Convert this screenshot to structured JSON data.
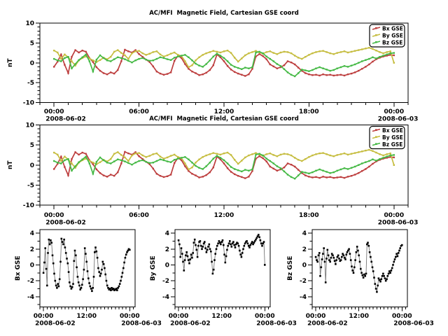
{
  "figure": {
    "background": "#ffffff",
    "frame_color": "#000000",
    "text_color": "#000000"
  },
  "chart_data": {
    "type": "line",
    "title": "AC/MFI  Magnetic Field, Cartesian GSE coord",
    "x_unit": "hours since 2008-06-02 00:00 UT",
    "x_start_label": "2008-06-02",
    "x_end_label": "2008-06-03",
    "x": [
      0,
      0.25,
      0.5,
      0.75,
      1,
      1.25,
      1.5,
      1.75,
      2,
      2.25,
      2.5,
      2.75,
      3,
      3.25,
      3.5,
      3.75,
      4,
      4.25,
      4.5,
      4.75,
      5,
      5.25,
      5.5,
      5.75,
      6,
      6.25,
      6.5,
      6.75,
      7,
      7.25,
      7.5,
      7.75,
      8,
      8.25,
      8.5,
      8.75,
      9,
      9.25,
      9.5,
      9.75,
      10,
      10.25,
      10.5,
      10.75,
      11,
      11.25,
      11.5,
      11.75,
      12,
      12.25,
      12.5,
      12.75,
      13,
      13.25,
      13.5,
      13.75,
      14,
      14.25,
      14.5,
      14.75,
      15,
      15.25,
      15.5,
      15.75,
      16,
      16.25,
      16.5,
      16.75,
      17,
      17.25,
      17.5,
      17.75,
      18,
      18.25,
      18.5,
      18.75,
      19,
      19.25,
      19.5,
      19.75,
      20,
      20.25,
      20.5,
      20.75,
      21,
      21.25,
      21.5,
      21.75,
      22,
      22.25,
      22.5,
      22.75,
      23,
      23.25,
      23.5,
      23.75,
      24
    ],
    "series": [
      {
        "name": "Bx GSE",
        "color": "#bd3e3e",
        "values": [
          -1.0,
          0.3,
          2.1,
          -0.5,
          -2.6,
          1.5,
          3.2,
          2.6,
          3.1,
          2.8,
          1.2,
          0.2,
          -1.1,
          -2.0,
          -2.6,
          -2.9,
          -2.4,
          -2.7,
          -1.8,
          0.4,
          3.3,
          2.9,
          2.6,
          3.2,
          2.2,
          1.5,
          0.8,
          0.2,
          -0.9,
          -2.2,
          -2.7,
          -3.0,
          -2.8,
          -2.4,
          0.5,
          1.8,
          1.2,
          -0.3,
          -1.5,
          -2.2,
          -2.6,
          -3.1,
          -2.9,
          -2.5,
          -1.8,
          -0.6,
          2.1,
          1.4,
          0.4,
          -0.8,
          -1.7,
          -2.3,
          -2.7,
          -3.0,
          -3.3,
          -2.9,
          -1.5,
          1.6,
          2.2,
          1.7,
          0.9,
          -0.4,
          -0.9,
          -1.4,
          -1.1,
          -0.6,
          0.4,
          0.1,
          -0.4,
          -1.2,
          -2.0,
          -2.6,
          -2.9,
          -3.1,
          -3.0,
          -3.2,
          -2.9,
          -3.1,
          -3.0,
          -3.2,
          -3.1,
          -3.0,
          -3.2,
          -2.9,
          -2.7,
          -2.4,
          -2.0,
          -1.5,
          -1.0,
          -0.4,
          0.3,
          0.9,
          1.3,
          1.6,
          1.8,
          2.0,
          1.9
        ]
      },
      {
        "name": "By GSE",
        "color": "#c6bd40",
        "values": [
          3.1,
          2.6,
          1.0,
          2.1,
          1.4,
          0.4,
          -0.7,
          0.6,
          1.2,
          1.6,
          1.1,
          0.6,
          0.2,
          0.7,
          1.3,
          0.9,
          1.5,
          2.8,
          3.2,
          2.5,
          1.9,
          1.0,
          2.4,
          2.9,
          3.0,
          2.4,
          2.0,
          2.3,
          2.7,
          2.9,
          2.1,
          1.6,
          1.9,
          2.3,
          2.6,
          2.0,
          1.7,
          0.4,
          -1.1,
          -0.6,
          0.6,
          1.4,
          2.0,
          2.4,
          2.7,
          3.0,
          2.8,
          2.6,
          2.9,
          3.1,
          2.5,
          1.3,
          0.3,
          1.1,
          1.9,
          2.4,
          2.7,
          3.0,
          2.6,
          2.3,
          2.7,
          2.9,
          2.5,
          2.2,
          2.6,
          2.8,
          2.7,
          2.4,
          1.8,
          1.3,
          1.0,
          1.5,
          2.0,
          2.4,
          2.7,
          2.9,
          3.0,
          2.7,
          2.4,
          2.2,
          2.5,
          2.7,
          2.9,
          2.6,
          2.8,
          3.0,
          3.2,
          3.4,
          3.6,
          3.8,
          3.5,
          3.1,
          2.7,
          2.4,
          2.7,
          2.9,
          0.0
        ]
      },
      {
        "name": "Bz GSE",
        "color": "#45b945",
        "values": [
          1.0,
          0.6,
          0.4,
          1.2,
          1.5,
          -1.4,
          -0.3,
          0.7,
          1.4,
          2.1,
          0.4,
          -2.2,
          0.8,
          1.9,
          1.2,
          0.6,
          0.4,
          0.9,
          1.4,
          1.2,
          0.9,
          0.5,
          0.1,
          0.6,
          1.0,
          1.2,
          0.8,
          0.5,
          0.6,
          1.0,
          1.4,
          1.2,
          0.9,
          0.7,
          1.3,
          1.6,
          1.8,
          2.0,
          1.4,
          0.6,
          -0.2,
          -0.7,
          -1.0,
          -0.3,
          0.6,
          1.6,
          2.3,
          1.8,
          1.2,
          0.4,
          -0.5,
          -1.0,
          -1.3,
          -1.6,
          -1.2,
          -1.4,
          -1.1,
          2.6,
          2.8,
          2.4,
          1.6,
          1.0,
          0.4,
          -0.3,
          -0.8,
          -1.6,
          -2.4,
          -3.0,
          -3.4,
          -2.6,
          -1.7,
          -1.9,
          -2.1,
          -1.8,
          -1.4,
          -1.1,
          -1.4,
          -1.7,
          -2.0,
          -1.8,
          -1.4,
          -1.1,
          -0.8,
          -1.0,
          -0.7,
          -0.4,
          0.0,
          0.4,
          0.7,
          1.0,
          1.4,
          1.1,
          1.5,
          1.8,
          2.1,
          2.4,
          2.5
        ]
      }
    ],
    "panels": [
      {
        "id": "overview-1",
        "title": "AC/MFI  Magnetic Field, Cartesian GSE coord",
        "ylabel": "nT",
        "ylim": [
          -10,
          10
        ],
        "yticks": [
          -10,
          -5,
          0,
          5,
          10
        ],
        "xlim_hours": [
          -1,
          25
        ],
        "xticks": [
          {
            "hour": 0,
            "label": "00:00",
            "sublabel": "2008-06-02"
          },
          {
            "hour": 6,
            "label": "06:00"
          },
          {
            "hour": 12,
            "label": "12:00"
          },
          {
            "hour": 18,
            "label": "18:00"
          },
          {
            "hour": 24,
            "label": "00:00",
            "sublabel": "2008-06-03"
          }
        ],
        "series": [
          "Bx GSE",
          "By GSE",
          "Bz GSE"
        ],
        "legend": {
          "visible": true,
          "position": "top-right",
          "entries": [
            "Bx GSE",
            "By GSE",
            "Bz GSE"
          ]
        },
        "grid": false
      },
      {
        "id": "overview-2",
        "title": "AC/MFI  Magnetic Field, Cartesian GSE coord",
        "ylabel": "nT",
        "ylim": [
          -10,
          10
        ],
        "yticks": [
          -10,
          -5,
          0,
          5,
          10
        ],
        "xlim_hours": [
          -1,
          25
        ],
        "xticks": [
          {
            "hour": 0,
            "label": "00:00",
            "sublabel": "2008-06-02"
          },
          {
            "hour": 6,
            "label": "06:00"
          },
          {
            "hour": 12,
            "label": "12:00"
          },
          {
            "hour": 18,
            "label": "18:00"
          },
          {
            "hour": 24,
            "label": "00:00",
            "sublabel": "2008-06-03"
          }
        ],
        "series": [
          "Bx GSE",
          "By GSE",
          "Bz GSE"
        ],
        "legend": {
          "visible": true,
          "position": "top-right",
          "entries": [
            "Bx GSE",
            "By GSE",
            "Bz GSE"
          ]
        },
        "grid": false
      },
      {
        "id": "bx",
        "ylabel": "Bx GSE",
        "ylim": [
          -5.3,
          4.45
        ],
        "yticks": [
          -4,
          -2,
          0,
          2,
          4
        ],
        "xlim_hours": [
          -1,
          25.5
        ],
        "xticks": [
          {
            "hour": 0,
            "label": "00:00",
            "sublabel": "2008-06-02"
          },
          {
            "hour": 12,
            "label": "12:00"
          },
          {
            "hour": 24,
            "label": "00:00",
            "sublabel": "2008-06-03"
          }
        ],
        "series": [
          "Bx GSE"
        ],
        "series_color_override": "#000000",
        "legend": {
          "visible": false
        },
        "grid": false
      },
      {
        "id": "by",
        "ylabel": "By GSE",
        "ylim": [
          -5.3,
          4.45
        ],
        "yticks": [
          -4,
          -2,
          0,
          2,
          4
        ],
        "xlim_hours": [
          -1,
          25.5
        ],
        "xticks": [
          {
            "hour": 0,
            "label": "00:00",
            "sublabel": "2008-06-02"
          },
          {
            "hour": 12,
            "label": "12:00"
          },
          {
            "hour": 24,
            "label": "00:00",
            "sublabel": "2008-06-03"
          }
        ],
        "series": [
          "By GSE"
        ],
        "series_color_override": "#000000",
        "legend": {
          "visible": false
        },
        "grid": false
      },
      {
        "id": "bz",
        "ylabel": "Bz GSE",
        "ylim": [
          -5.3,
          4.45
        ],
        "yticks": [
          -4,
          -2,
          0,
          2,
          4
        ],
        "xlim_hours": [
          -1,
          25.5
        ],
        "xticks": [
          {
            "hour": 0,
            "label": "00:00",
            "sublabel": "2008-06-02"
          },
          {
            "hour": 12,
            "label": "12:00"
          },
          {
            "hour": 24,
            "label": "00:00",
            "sublabel": "2008-06-03"
          }
        ],
        "series": [
          "Bz GSE"
        ],
        "series_color_override": "#000000",
        "legend": {
          "visible": false
        },
        "grid": false
      }
    ]
  }
}
